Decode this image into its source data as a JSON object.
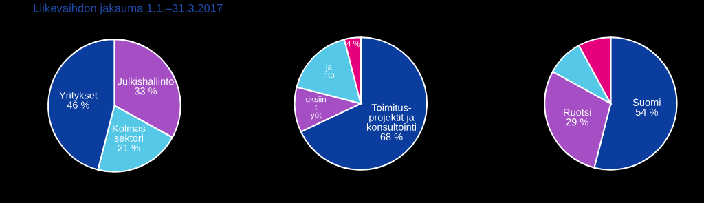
{
  "chart_data": [
    {
      "type": "pie",
      "title": "Liikevaihdon jakauma 1.1.–31.3.2017",
      "categories": [
        "Julkishallinto",
        "Kolmas\nsektori",
        "Yritykset"
      ],
      "values": [
        33,
        21,
        46
      ],
      "value_labels": [
        "33 %",
        "21 %",
        "46 %"
      ],
      "colors": [
        "#a64fc4",
        "#55c8e8",
        "#0b3d9e"
      ],
      "legend": false
    },
    {
      "type": "pie",
      "categories": [
        "Toimitus-\nprojektit ja\nkonsultointi",
        "uksiin\nt\nyöt",
        "ja\nnto",
        null
      ],
      "values": [
        68,
        11,
        17,
        4
      ],
      "value_labels": [
        "68 %",
        null,
        null,
        "4 %"
      ],
      "colors": [
        "#0b3d9e",
        "#a64fc4",
        "#55c8e8",
        "#e6007e"
      ],
      "legend": false
    },
    {
      "type": "pie",
      "categories": [
        "Suomi",
        "Ruotsi",
        null,
        null
      ],
      "values": [
        54,
        29,
        9,
        8
      ],
      "value_labels": [
        "54 %",
        "29 %",
        null,
        null
      ],
      "colors": [
        "#0b3d9e",
        "#a64fc4",
        "#55c8e8",
        "#e6007e"
      ],
      "legend": false
    }
  ]
}
